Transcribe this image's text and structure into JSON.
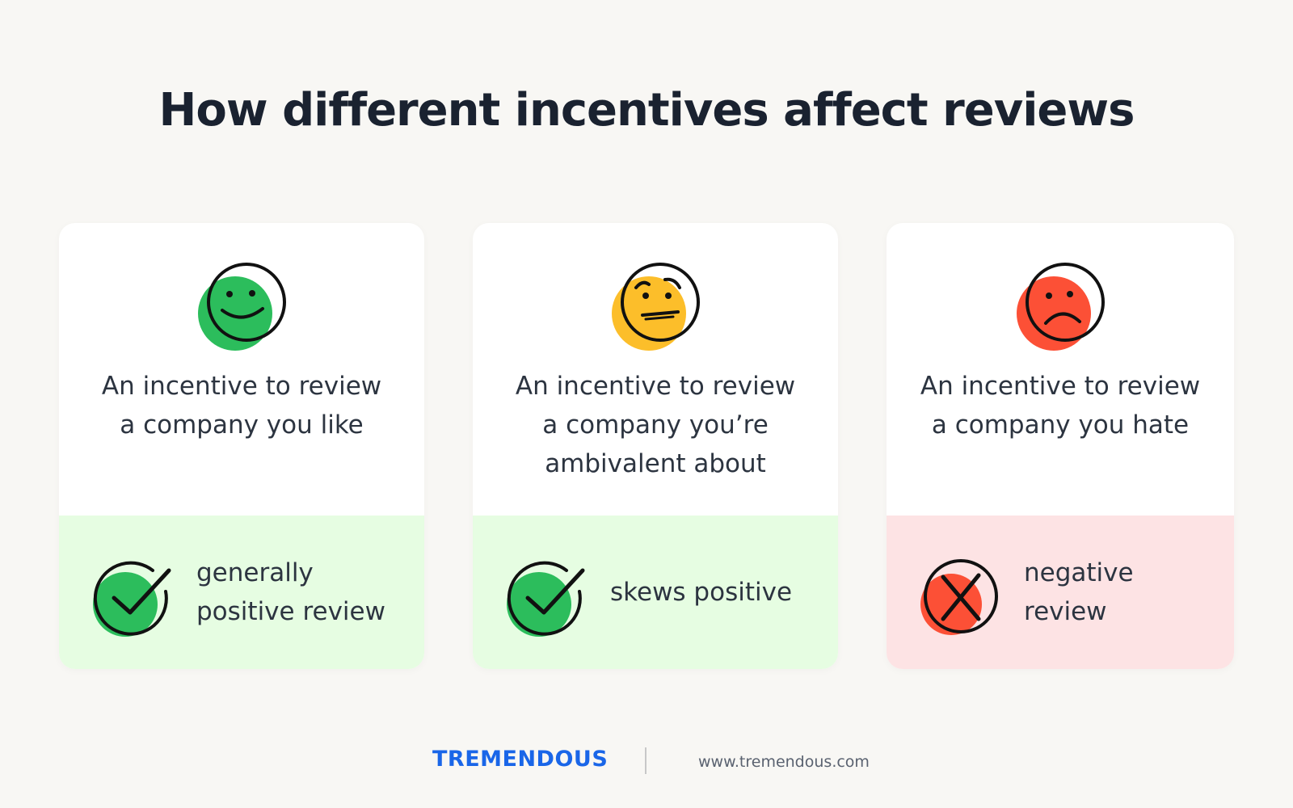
{
  "title": "How different incentives affect reviews",
  "cards": [
    {
      "face_icon": "smiley-face-icon",
      "face_color": "#2cbd5c",
      "description": "An incentive to review\na company you like",
      "outcome_icon": "check-icon",
      "outcome_color": "#2cbd5c",
      "outcome_bg": "#e6fde2",
      "outcome": "generally\npositive review"
    },
    {
      "face_icon": "confused-face-icon",
      "face_color": "#fcbe2a",
      "description": "An incentive to review\na company you’re\nambivalent about",
      "outcome_icon": "check-icon",
      "outcome_color": "#2cbd5c",
      "outcome_bg": "#e6fde2",
      "outcome": "skews positive"
    },
    {
      "face_icon": "sad-face-icon",
      "face_color": "#fc5036",
      "description": "An incentive to review\na company you hate",
      "outcome_icon": "x-icon",
      "outcome_color": "#fc5036",
      "outcome_bg": "#fde3e4",
      "outcome": "negative review"
    }
  ],
  "footer": {
    "brand": "TREMENDOUS",
    "url": "www.tremendous.com"
  }
}
